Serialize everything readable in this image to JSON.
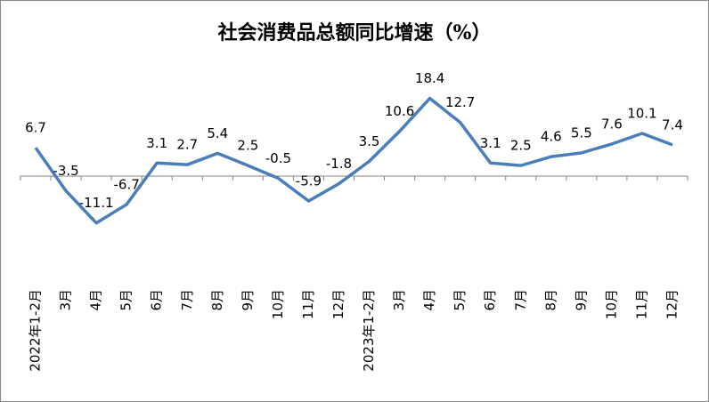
{
  "chart_data": {
    "type": "line",
    "title": "社会消费品总额同比增速（%）",
    "categories": [
      "2022年1-2月",
      "3月",
      "4月",
      "5月",
      "6月",
      "7月",
      "8月",
      "9月",
      "10月",
      "11月",
      "12月",
      "2023年1-2月",
      "3月",
      "4月",
      "5月",
      "6月",
      "7月",
      "8月",
      "9月",
      "10月",
      "11月",
      "12月"
    ],
    "values": [
      6.7,
      -3.5,
      -11.1,
      -6.7,
      3.1,
      2.7,
      5.4,
      2.5,
      -0.5,
      -5.9,
      -1.8,
      3.5,
      10.6,
      18.4,
      12.7,
      3.1,
      2.5,
      4.6,
      5.5,
      7.6,
      10.1,
      7.4
    ],
    "color": "#4a7ebb",
    "ylim": [
      -20,
      20
    ]
  }
}
